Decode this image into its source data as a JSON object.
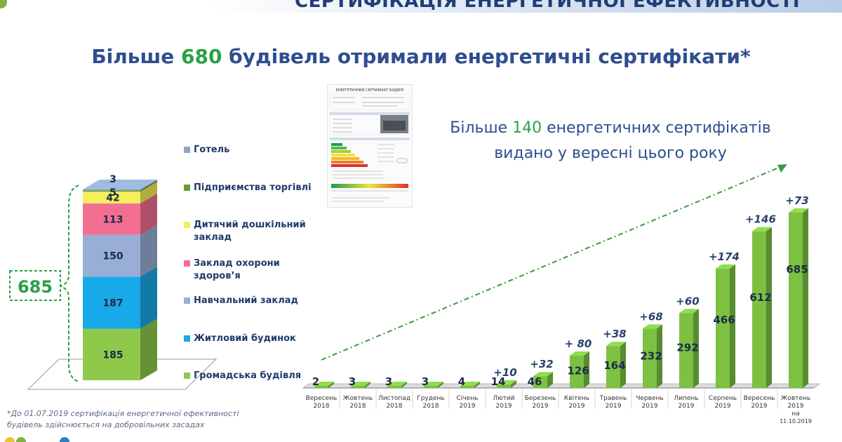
{
  "header": {
    "title": "СЕРТИФІКАЦІЯ ЕНЕРГЕТИЧНОЇ ЕФЕКТИВНОСТІ"
  },
  "headline": {
    "part1": "Більше ",
    "number": "680",
    "part2": " будівель отримали енергетичні сертифікати*"
  },
  "subtitle": {
    "line1_prefix": "Більше ",
    "line1_number": "140",
    "line1_suffix": " енергетичних сертифікатів",
    "line2": "видано у вересні цього року"
  },
  "certificate_thumbnail": {
    "title": "ЕНЕРГЕТИЧНИЙ СЕРТИФІКАТ БУДІВЛІ"
  },
  "footnote": {
    "line1": "*До 01.07.2019 сертифікація енергетичної ефективності",
    "line2": "будівель здійснюється на добровільних засадах"
  },
  "colors": {
    "accent_green": "#2aa146",
    "title_blue": "#2e4e8f",
    "bar_green": "#7cc142",
    "arrow_green": "#3c9a3c"
  },
  "chart_data": [
    {
      "type": "bar",
      "subtype": "stacked",
      "total_label": "685",
      "series": [
        {
          "name": "Громадська будівля",
          "value": 185,
          "color": "#8fc94b"
        },
        {
          "name": "Житловий будинок",
          "value": 187,
          "color": "#18a9e8"
        },
        {
          "name": "Навчальний заклад",
          "value": 150,
          "color": "#98aed6"
        },
        {
          "name": "Заклад охорони здоров’я",
          "value": 113,
          "color": "#f36f92"
        },
        {
          "name": "Дитячий дошкільний заклад",
          "value": 42,
          "color": "#f4ef5a"
        },
        {
          "name": "Підприємства торгівлі",
          "value": 5,
          "color": "#6b9a3b"
        },
        {
          "name": "Готель",
          "value": 3,
          "color": "#8fa7c8"
        }
      ],
      "legend_order": [
        "Готель",
        "Підприємства торгівлі",
        "Дитячий дошкільний заклад",
        "Заклад охорони здоров’я",
        "Навчальний заклад",
        "Житловий будинок",
        "Громадська будівля"
      ]
    },
    {
      "type": "bar",
      "subtype": "cumulative",
      "categories": [
        [
          "Вересень",
          "2018"
        ],
        [
          "Жовтень",
          "2018"
        ],
        [
          "Листопад",
          "2018"
        ],
        [
          "Грудень",
          "2018"
        ],
        [
          "Січень",
          "2019"
        ],
        [
          "Лютий",
          "2019"
        ],
        [
          "Березень",
          "2019"
        ],
        [
          "Квітень",
          "2019"
        ],
        [
          "Травень",
          "2019"
        ],
        [
          "Червень",
          "2019"
        ],
        [
          "Липень",
          "2019"
        ],
        [
          "Серпень",
          "2019"
        ],
        [
          "Вересень",
          "2019"
        ],
        [
          "Жовтень",
          "2019",
          "на",
          "11.10.2019"
        ]
      ],
      "values": [
        2,
        3,
        3,
        3,
        4,
        14,
        46,
        126,
        164,
        232,
        292,
        466,
        612,
        685
      ],
      "increments": [
        "",
        "",
        "",
        "",
        "",
        "+10",
        "+32",
        "+ 80",
        "+38",
        "+68",
        "+60",
        "+174",
        "+146",
        "+73"
      ],
      "ylim": [
        0,
        700
      ]
    }
  ]
}
